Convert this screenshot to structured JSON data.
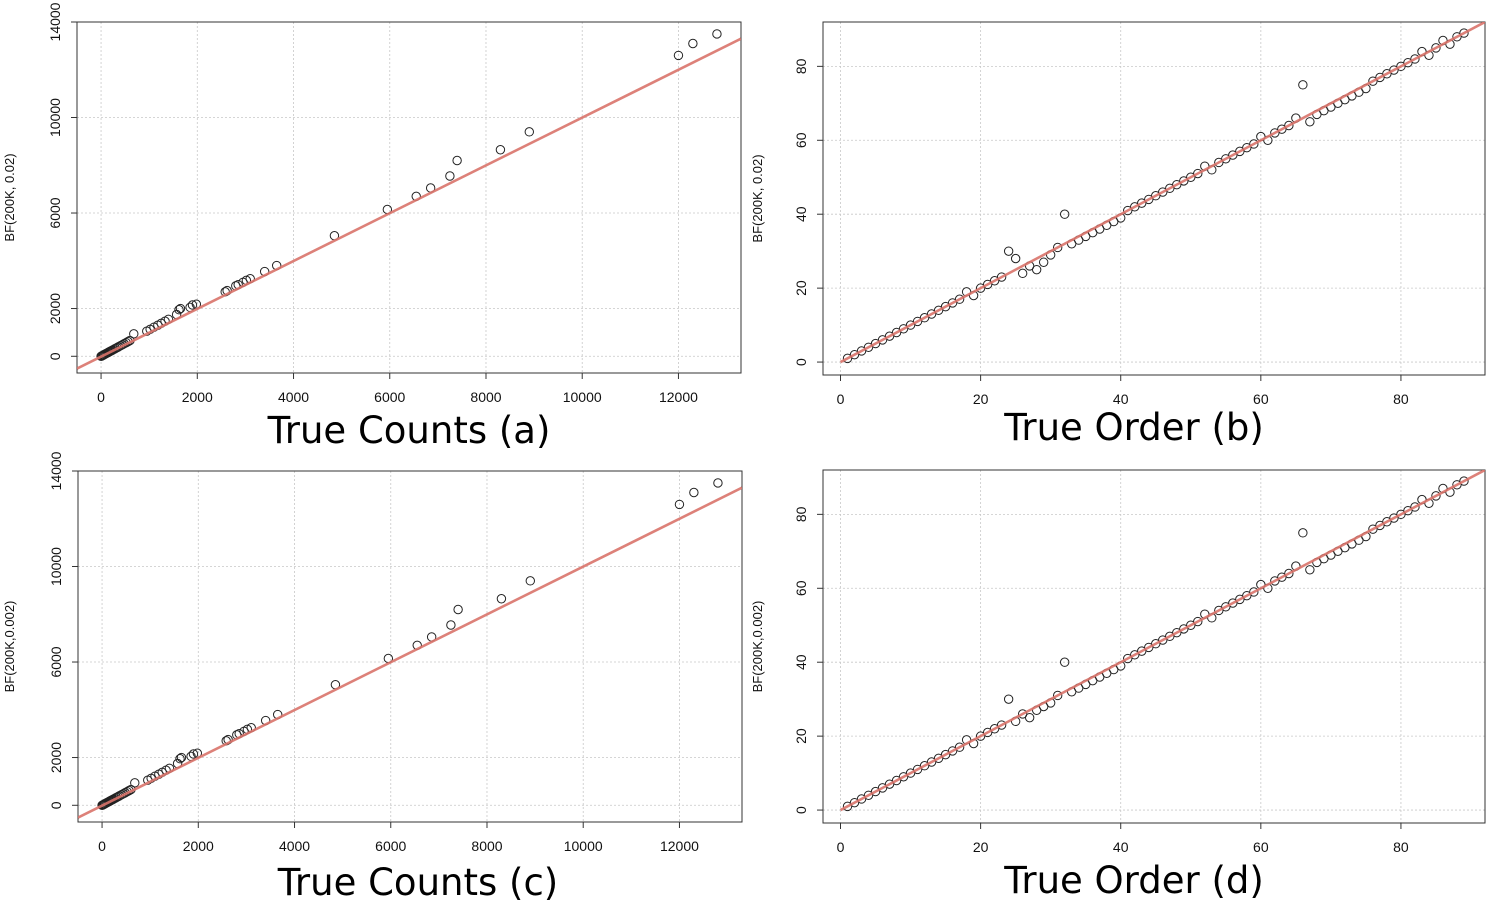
{
  "chart_data": [
    {
      "id": "a",
      "type": "scatter",
      "caption": "True Counts (a)",
      "ylabel": "BF(200K, 0.02)",
      "xlim": [
        -500,
        13300
      ],
      "ylim": [
        -700,
        14000
      ],
      "xticks": [
        0,
        2000,
        4000,
        6000,
        8000,
        10000,
        12000
      ],
      "yticks": [
        0,
        2000,
        6000,
        10000,
        14000
      ],
      "grid": true,
      "fit_line": {
        "x": [
          -500,
          13300
        ],
        "y": [
          -515,
          13300
        ],
        "color": "#d9736a"
      },
      "point_color": "#222222",
      "points_x": [
        0,
        15,
        30,
        45,
        60,
        80,
        100,
        120,
        140,
        160,
        180,
        200,
        220,
        240,
        270,
        300,
        330,
        360,
        400,
        440,
        480,
        520,
        560,
        600,
        680,
        950,
        1020,
        1100,
        1180,
        1250,
        1330,
        1400,
        1570,
        1620,
        1650,
        1850,
        1900,
        1980,
        2580,
        2620,
        2800,
        2850,
        2950,
        3020,
        3100,
        3400,
        3650,
        4850,
        5950,
        6550,
        6850,
        7250,
        7400,
        8300,
        8900,
        12000,
        12300,
        12800
      ],
      "points_y": [
        0,
        16,
        32,
        48,
        64,
        86,
        108,
        130,
        152,
        174,
        196,
        218,
        240,
        262,
        295,
        328,
        361,
        394,
        438,
        482,
        526,
        570,
        614,
        658,
        940,
        1050,
        1130,
        1220,
        1300,
        1380,
        1470,
        1550,
        1750,
        1950,
        2000,
        2050,
        2150,
        2180,
        2700,
        2750,
        2950,
        3000,
        3100,
        3180,
        3250,
        3550,
        3800,
        5050,
        6150,
        6700,
        7050,
        7550,
        8200,
        8650,
        9400,
        12600,
        13100,
        13500
      ]
    },
    {
      "id": "b",
      "type": "scatter",
      "caption": "True Order (b)",
      "ylabel": "BF(200K, 0.02)",
      "xlim": [
        -2.5,
        92
      ],
      "ylim": [
        -3.5,
        92
      ],
      "xticks": [
        0,
        20,
        40,
        60,
        80
      ],
      "yticks": [
        0,
        20,
        40,
        60,
        80
      ],
      "grid": true,
      "fit_line": {
        "x": [
          0,
          92
        ],
        "y": [
          0,
          92
        ],
        "color": "#d9736a"
      },
      "point_color": "#222222",
      "points_x": [
        1,
        2,
        3,
        4,
        5,
        6,
        7,
        8,
        9,
        10,
        11,
        12,
        13,
        14,
        15,
        16,
        17,
        18,
        19,
        20,
        21,
        22,
        23,
        24,
        25,
        26,
        27,
        28,
        29,
        30,
        31,
        32,
        33,
        34,
        35,
        36,
        37,
        38,
        39,
        40,
        41,
        42,
        43,
        44,
        45,
        46,
        47,
        48,
        49,
        50,
        51,
        52,
        53,
        54,
        55,
        56,
        57,
        58,
        59,
        60,
        61,
        62,
        63,
        64,
        65,
        66,
        67,
        68,
        69,
        70,
        71,
        72,
        73,
        74,
        75,
        76,
        77,
        78,
        79,
        80,
        81,
        82,
        83,
        84,
        85,
        86,
        87,
        88,
        89
      ],
      "points_y": [
        1,
        2,
        3,
        4,
        5,
        6,
        7,
        8,
        9,
        10,
        11,
        12,
        13,
        14,
        15,
        16,
        17,
        19,
        18,
        20,
        21,
        22,
        23,
        30,
        28,
        24,
        26,
        25,
        27,
        29,
        31,
        40,
        32,
        33,
        34,
        35,
        36,
        37,
        38,
        39,
        41,
        42,
        43,
        44,
        45,
        46,
        47,
        48,
        49,
        50,
        51,
        53,
        52,
        54,
        55,
        56,
        57,
        58,
        59,
        61,
        60,
        62,
        63,
        64,
        66,
        75,
        65,
        67,
        68,
        69,
        70,
        71,
        72,
        73,
        74,
        76,
        77,
        78,
        79,
        80,
        81,
        82,
        84,
        83,
        85,
        87,
        86,
        88,
        89
      ]
    },
    {
      "id": "c",
      "type": "scatter",
      "caption": "True Counts (c)",
      "ylabel": "BF(200K,0.002)",
      "xlim": [
        -500,
        13300
      ],
      "ylim": [
        -700,
        14000
      ],
      "xticks": [
        0,
        2000,
        4000,
        6000,
        8000,
        10000,
        12000
      ],
      "yticks": [
        0,
        2000,
        6000,
        10000,
        14000
      ],
      "grid": true,
      "fit_line": {
        "x": [
          -500,
          13300
        ],
        "y": [
          -515,
          13300
        ],
        "color": "#d9736a"
      },
      "point_color": "#222222",
      "points_x": [
        0,
        15,
        30,
        45,
        60,
        80,
        100,
        120,
        140,
        160,
        180,
        200,
        220,
        240,
        270,
        300,
        330,
        360,
        400,
        440,
        480,
        520,
        560,
        600,
        680,
        950,
        1020,
        1100,
        1180,
        1250,
        1330,
        1400,
        1570,
        1620,
        1650,
        1850,
        1900,
        1980,
        2580,
        2620,
        2800,
        2850,
        2950,
        3020,
        3100,
        3400,
        3650,
        4850,
        5950,
        6550,
        6850,
        7250,
        7400,
        8300,
        8900,
        12000,
        12300,
        12800
      ],
      "points_y": [
        0,
        16,
        32,
        48,
        64,
        86,
        108,
        130,
        152,
        174,
        196,
        218,
        240,
        262,
        295,
        328,
        361,
        394,
        438,
        482,
        526,
        570,
        614,
        658,
        940,
        1050,
        1130,
        1220,
        1300,
        1380,
        1470,
        1550,
        1750,
        1950,
        2000,
        2050,
        2150,
        2180,
        2700,
        2750,
        2950,
        3000,
        3100,
        3180,
        3250,
        3550,
        3800,
        5050,
        6150,
        6700,
        7050,
        7550,
        8200,
        8650,
        9400,
        12600,
        13100,
        13500
      ]
    },
    {
      "id": "d",
      "type": "scatter",
      "caption": "True Order (d)",
      "ylabel": "BF(200K,0.002)",
      "xlim": [
        -2.5,
        92
      ],
      "ylim": [
        -3.5,
        92
      ],
      "xticks": [
        0,
        20,
        40,
        60,
        80
      ],
      "yticks": [
        0,
        20,
        40,
        60,
        80
      ],
      "grid": true,
      "fit_line": {
        "x": [
          0,
          92
        ],
        "y": [
          0,
          92
        ],
        "color": "#d9736a"
      },
      "point_color": "#222222",
      "points_x": [
        1,
        2,
        3,
        4,
        5,
        6,
        7,
        8,
        9,
        10,
        11,
        12,
        13,
        14,
        15,
        16,
        17,
        18,
        19,
        20,
        21,
        22,
        23,
        24,
        25,
        26,
        27,
        28,
        29,
        30,
        31,
        32,
        33,
        34,
        35,
        36,
        37,
        38,
        39,
        40,
        41,
        42,
        43,
        44,
        45,
        46,
        47,
        48,
        49,
        50,
        51,
        52,
        53,
        54,
        55,
        56,
        57,
        58,
        59,
        60,
        61,
        62,
        63,
        64,
        65,
        66,
        67,
        68,
        69,
        70,
        71,
        72,
        73,
        74,
        75,
        76,
        77,
        78,
        79,
        80,
        81,
        82,
        83,
        84,
        85,
        86,
        87,
        88,
        89
      ],
      "points_y": [
        1,
        2,
        3,
        4,
        5,
        6,
        7,
        8,
        9,
        10,
        11,
        12,
        13,
        14,
        15,
        16,
        17,
        19,
        18,
        20,
        21,
        22,
        23,
        30,
        24,
        26,
        25,
        27,
        28,
        29,
        31,
        40,
        32,
        33,
        34,
        35,
        36,
        37,
        38,
        39,
        41,
        42,
        43,
        44,
        45,
        46,
        47,
        48,
        49,
        50,
        51,
        53,
        52,
        54,
        55,
        56,
        57,
        58,
        59,
        61,
        60,
        62,
        63,
        64,
        66,
        75,
        65,
        67,
        68,
        69,
        70,
        71,
        72,
        73,
        74,
        76,
        77,
        78,
        79,
        80,
        81,
        82,
        84,
        83,
        85,
        87,
        86,
        88,
        89
      ]
    }
  ]
}
